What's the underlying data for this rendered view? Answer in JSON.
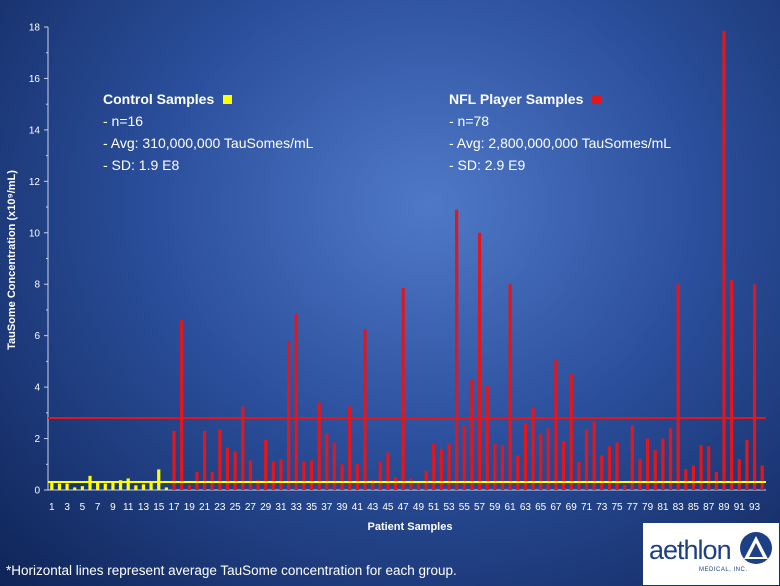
{
  "chart_data": {
    "type": "bar",
    "ylabel": "TauSome Concentration (x10⁹/mL)",
    "xlabel": "Patient Samples",
    "ylim": [
      0,
      18
    ],
    "yticks": [
      0,
      2,
      4,
      6,
      8,
      10,
      12,
      14,
      16,
      18
    ],
    "xtick_labels": [
      1,
      3,
      5,
      7,
      9,
      11,
      13,
      15,
      17,
      19,
      21,
      23,
      25,
      27,
      29,
      31,
      33,
      35,
      37,
      39,
      41,
      43,
      45,
      47,
      49,
      51,
      53,
      55,
      57,
      59,
      61,
      63,
      65,
      67,
      69,
      71,
      73,
      75,
      77,
      79,
      81,
      83,
      85,
      87,
      89,
      91,
      93
    ],
    "grid": false,
    "series": [
      {
        "name": "Control Samples",
        "color": "#ffff00",
        "x": [
          1,
          2,
          3,
          4,
          5,
          6,
          7,
          8,
          9,
          10,
          11,
          12,
          13,
          14,
          15,
          16
        ],
        "values": [
          0.35,
          0.25,
          0.25,
          0.1,
          0.15,
          0.55,
          0.28,
          0.25,
          0.3,
          0.38,
          0.45,
          0.18,
          0.22,
          0.32,
          0.8,
          0.1
        ],
        "average": 0.31
      },
      {
        "name": "NFL Player Samples",
        "color": "#e3161c",
        "x": [
          17,
          18,
          19,
          20,
          21,
          22,
          23,
          24,
          25,
          26,
          27,
          28,
          29,
          30,
          31,
          32,
          33,
          34,
          35,
          36,
          37,
          38,
          39,
          40,
          41,
          42,
          43,
          44,
          45,
          46,
          47,
          48,
          49,
          50,
          51,
          52,
          53,
          54,
          55,
          56,
          57,
          58,
          59,
          60,
          61,
          62,
          63,
          64,
          65,
          66,
          67,
          68,
          69,
          70,
          71,
          72,
          73,
          74,
          75,
          76,
          77,
          78,
          79,
          80,
          81,
          82,
          83,
          84,
          85,
          86,
          87,
          88,
          89,
          90,
          91,
          92,
          93,
          94
        ],
        "values": [
          2.3,
          6.6,
          0.2,
          0.7,
          2.3,
          0.7,
          2.35,
          1.65,
          1.5,
          3.25,
          1.15,
          0.4,
          1.95,
          1.1,
          1.2,
          5.8,
          6.85,
          1.1,
          1.15,
          3.4,
          2.2,
          1.85,
          1.0,
          3.25,
          1.0,
          6.25,
          0.4,
          1.1,
          1.45,
          0.5,
          7.85,
          0.45,
          0.35,
          0.75,
          1.8,
          1.6,
          1.8,
          10.9,
          2.5,
          4.3,
          10.0,
          4.05,
          1.8,
          1.75,
          8.0,
          1.35,
          2.6,
          3.2,
          2.2,
          2.4,
          5.05,
          1.9,
          4.5,
          1.1,
          2.35,
          2.65,
          1.35,
          1.7,
          1.85,
          0.2,
          2.5,
          1.2,
          2.0,
          1.55,
          2.0,
          2.4,
          8.0,
          0.8,
          0.95,
          1.75,
          1.7,
          0.7,
          17.85,
          8.15,
          1.2,
          1.95,
          8.0,
          0.95
        ],
        "average": 2.8
      }
    ]
  },
  "legend": {
    "control": {
      "title": "Control Samples",
      "lines": [
        "- n=16",
        "- Avg: 310,000,000 TauSomes/mL",
        "- SD: 1.9 E8"
      ]
    },
    "nfl": {
      "title": "NFL Player Samples",
      "lines": [
        "- n=78",
        "- Avg: 2,800,000,000 TauSomes/mL",
        "- SD: 2.9 E9"
      ]
    }
  },
  "footnote": "*Horizontal lines represent average TauSome concentration for each group.",
  "logo": {
    "word": "aethlon",
    "sub": "MEDICAL, INC."
  }
}
